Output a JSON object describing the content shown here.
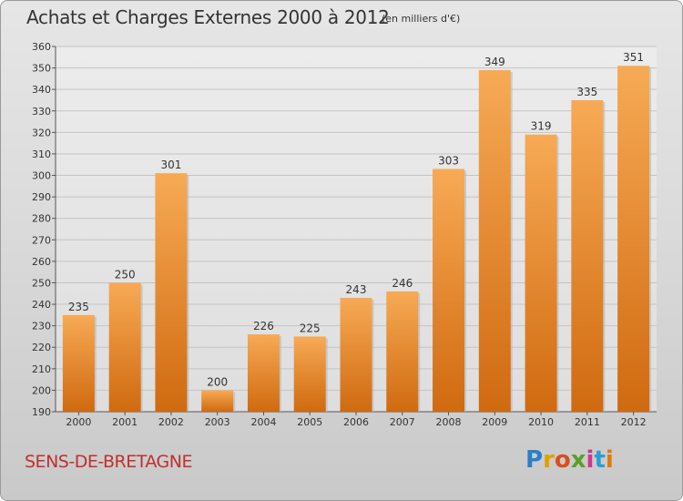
{
  "header": {
    "title": "Achats et Charges Externes 2000 à 2012",
    "unit": "(en milliers d'€)"
  },
  "footer": {
    "commune": "SENS-DE-BRETAGNE",
    "logo": "Proxiti"
  },
  "colors": {
    "bar_light": "#f5a550",
    "bar_dark": "#d06a10",
    "commune": "#c0302e"
  },
  "chart_data": {
    "type": "bar",
    "title": "Achats et Charges Externes 2000 à 2012",
    "subtitle": "(en milliers d'€)",
    "categories": [
      "2000",
      "2001",
      "2002",
      "2003",
      "2004",
      "2005",
      "2006",
      "2007",
      "2008",
      "2009",
      "2010",
      "2011",
      "2012"
    ],
    "values": [
      235,
      250,
      301,
      200,
      226,
      225,
      243,
      246,
      303,
      349,
      319,
      335,
      351
    ],
    "ylim": [
      190,
      360
    ],
    "yticks": [
      190,
      200,
      210,
      220,
      230,
      240,
      250,
      260,
      270,
      280,
      290,
      300,
      310,
      320,
      330,
      340,
      350,
      360
    ],
    "grid": true,
    "legend": "none"
  }
}
